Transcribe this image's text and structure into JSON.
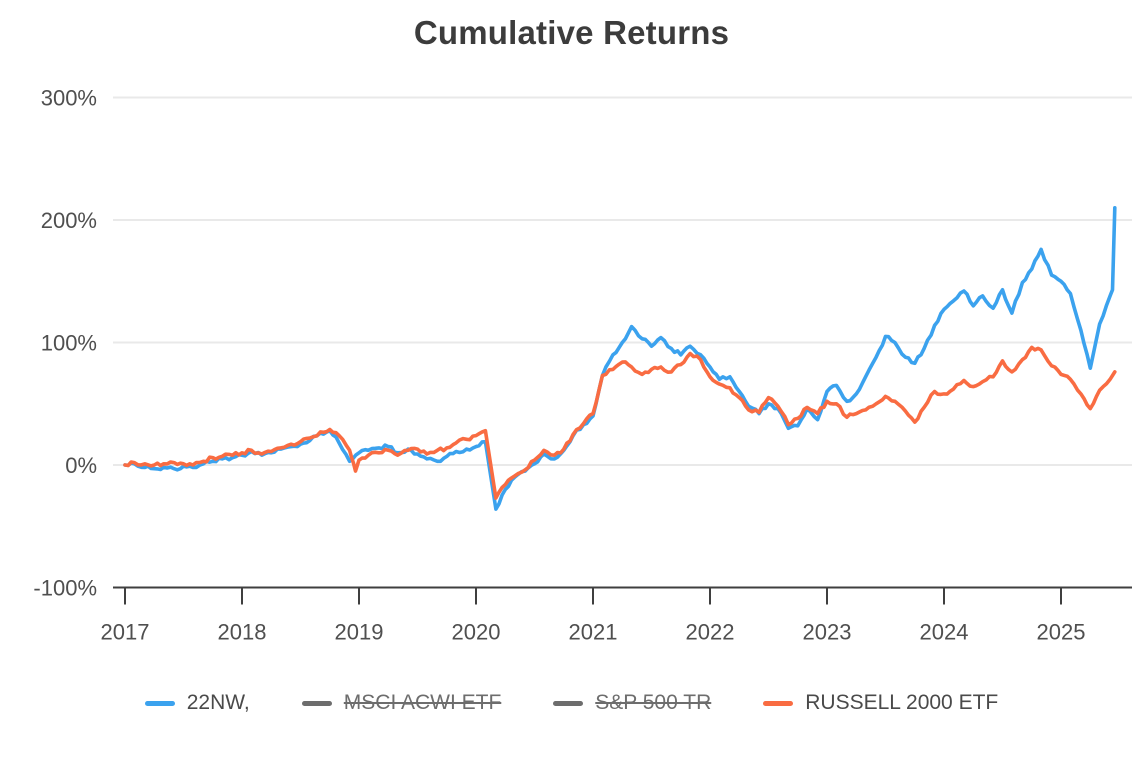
{
  "chart_data": {
    "type": "line",
    "title": "Cumulative Returns",
    "xlabel": "",
    "ylabel": "",
    "x_ticks": [
      2017,
      2018,
      2019,
      2020,
      2021,
      2022,
      2023,
      2024,
      2025
    ],
    "x_tick_labels": [
      "2017",
      "2018",
      "2019",
      "2020",
      "2021",
      "2022",
      "2023",
      "2024",
      "2025"
    ],
    "y_tick_values": [
      300,
      200,
      100,
      0,
      -100
    ],
    "y_tick_labels": [
      "300%",
      "200%",
      "100%",
      "0%",
      "-100%"
    ],
    "ylim": [
      -100,
      300
    ],
    "xlim": [
      2016.9,
      2025.6
    ],
    "grid": "horizontal",
    "legend_position": "bottom",
    "colors": {
      "blue": "#3ba2ee",
      "orange": "#f96c42",
      "disabled_gray": "#6d6d6d",
      "gridline": "#e9e9e9",
      "axis": "#3f3f3f",
      "tick_text": "#4f4f4f",
      "title_text": "#3c3c3c"
    },
    "series": [
      {
        "name": "22NW,",
        "color": "#3ba2ee",
        "hidden": false,
        "points": [
          [
            2017.0,
            0
          ],
          [
            2017.08,
            1
          ],
          [
            2017.17,
            -2
          ],
          [
            2017.25,
            -3
          ],
          [
            2017.33,
            -2
          ],
          [
            2017.42,
            -3
          ],
          [
            2017.5,
            -1
          ],
          [
            2017.58,
            -2
          ],
          [
            2017.67,
            1
          ],
          [
            2017.75,
            3
          ],
          [
            2017.83,
            5
          ],
          [
            2017.92,
            6
          ],
          [
            2018.0,
            8
          ],
          [
            2018.08,
            11
          ],
          [
            2018.17,
            8
          ],
          [
            2018.25,
            10
          ],
          [
            2018.33,
            13
          ],
          [
            2018.42,
            15
          ],
          [
            2018.5,
            17
          ],
          [
            2018.58,
            20
          ],
          [
            2018.67,
            26
          ],
          [
            2018.75,
            28
          ],
          [
            2018.83,
            18
          ],
          [
            2018.92,
            3
          ],
          [
            2019.0,
            10
          ],
          [
            2019.08,
            12
          ],
          [
            2019.17,
            14
          ],
          [
            2019.25,
            15
          ],
          [
            2019.33,
            10
          ],
          [
            2019.42,
            13
          ],
          [
            2019.5,
            9
          ],
          [
            2019.58,
            5
          ],
          [
            2019.67,
            3
          ],
          [
            2019.75,
            7
          ],
          [
            2019.83,
            11
          ],
          [
            2019.92,
            13
          ],
          [
            2020.0,
            15
          ],
          [
            2020.08,
            19
          ],
          [
            2020.17,
            -36
          ],
          [
            2020.25,
            -20
          ],
          [
            2020.33,
            -10
          ],
          [
            2020.42,
            -5
          ],
          [
            2020.5,
            1
          ],
          [
            2020.58,
            9
          ],
          [
            2020.67,
            5
          ],
          [
            2020.75,
            12
          ],
          [
            2020.83,
            24
          ],
          [
            2020.92,
            33
          ],
          [
            2021.0,
            40
          ],
          [
            2021.08,
            73
          ],
          [
            2021.17,
            90
          ],
          [
            2021.25,
            100
          ],
          [
            2021.33,
            113
          ],
          [
            2021.42,
            103
          ],
          [
            2021.5,
            97
          ],
          [
            2021.58,
            104
          ],
          [
            2021.67,
            95
          ],
          [
            2021.75,
            90
          ],
          [
            2021.83,
            97
          ],
          [
            2021.92,
            90
          ],
          [
            2022.0,
            80
          ],
          [
            2022.08,
            70
          ],
          [
            2022.17,
            72
          ],
          [
            2022.25,
            60
          ],
          [
            2022.33,
            48
          ],
          [
            2022.42,
            42
          ],
          [
            2022.5,
            50
          ],
          [
            2022.58,
            46
          ],
          [
            2022.67,
            30
          ],
          [
            2022.75,
            32
          ],
          [
            2022.83,
            46
          ],
          [
            2022.92,
            37
          ],
          [
            2023.0,
            60
          ],
          [
            2023.08,
            65
          ],
          [
            2023.17,
            52
          ],
          [
            2023.25,
            58
          ],
          [
            2023.33,
            72
          ],
          [
            2023.42,
            88
          ],
          [
            2023.5,
            105
          ],
          [
            2023.58,
            100
          ],
          [
            2023.67,
            88
          ],
          [
            2023.75,
            83
          ],
          [
            2023.83,
            95
          ],
          [
            2023.92,
            114
          ],
          [
            2024.0,
            127
          ],
          [
            2024.08,
            134
          ],
          [
            2024.17,
            142
          ],
          [
            2024.25,
            130
          ],
          [
            2024.33,
            138
          ],
          [
            2024.42,
            128
          ],
          [
            2024.5,
            143
          ],
          [
            2024.58,
            124
          ],
          [
            2024.67,
            149
          ],
          [
            2024.75,
            160
          ],
          [
            2024.83,
            176
          ],
          [
            2024.92,
            155
          ],
          [
            2025.0,
            150
          ],
          [
            2025.08,
            140
          ],
          [
            2025.17,
            110
          ],
          [
            2025.25,
            79
          ],
          [
            2025.33,
            115
          ],
          [
            2025.42,
            138
          ],
          [
            2025.44,
            143
          ],
          [
            2025.46,
            210
          ]
        ]
      },
      {
        "name": "MSCI ACWI ETF",
        "color": "#6d6d6d",
        "hidden": true,
        "points": []
      },
      {
        "name": "S&P 500 TR",
        "color": "#6d6d6d",
        "hidden": true,
        "points": []
      },
      {
        "name": "RUSSELL 2000 ETF",
        "color": "#f96c42",
        "hidden": false,
        "points": [
          [
            2017.0,
            0
          ],
          [
            2017.08,
            2
          ],
          [
            2017.17,
            1
          ],
          [
            2017.25,
            0
          ],
          [
            2017.33,
            1
          ],
          [
            2017.42,
            2
          ],
          [
            2017.5,
            1
          ],
          [
            2017.58,
            0
          ],
          [
            2017.67,
            3
          ],
          [
            2017.75,
            6
          ],
          [
            2017.83,
            7
          ],
          [
            2017.92,
            8
          ],
          [
            2018.0,
            10
          ],
          [
            2018.08,
            12
          ],
          [
            2018.17,
            9
          ],
          [
            2018.25,
            11
          ],
          [
            2018.33,
            14
          ],
          [
            2018.42,
            17
          ],
          [
            2018.5,
            19
          ],
          [
            2018.58,
            22
          ],
          [
            2018.67,
            27
          ],
          [
            2018.75,
            29
          ],
          [
            2018.83,
            24
          ],
          [
            2018.92,
            12
          ],
          [
            2018.97,
            -5
          ],
          [
            2019.0,
            4
          ],
          [
            2019.08,
            8
          ],
          [
            2019.17,
            10
          ],
          [
            2019.25,
            12
          ],
          [
            2019.33,
            8
          ],
          [
            2019.42,
            12
          ],
          [
            2019.5,
            13
          ],
          [
            2019.58,
            9
          ],
          [
            2019.67,
            12
          ],
          [
            2019.75,
            14
          ],
          [
            2019.83,
            18
          ],
          [
            2019.92,
            21
          ],
          [
            2020.0,
            24
          ],
          [
            2020.08,
            28
          ],
          [
            2020.17,
            -27
          ],
          [
            2020.25,
            -16
          ],
          [
            2020.33,
            -9
          ],
          [
            2020.42,
            -4
          ],
          [
            2020.5,
            4
          ],
          [
            2020.58,
            12
          ],
          [
            2020.67,
            8
          ],
          [
            2020.75,
            13
          ],
          [
            2020.83,
            25
          ],
          [
            2020.92,
            34
          ],
          [
            2021.0,
            42
          ],
          [
            2021.08,
            73
          ],
          [
            2021.17,
            78
          ],
          [
            2021.25,
            84
          ],
          [
            2021.33,
            80
          ],
          [
            2021.42,
            74
          ],
          [
            2021.5,
            78
          ],
          [
            2021.58,
            80
          ],
          [
            2021.67,
            76
          ],
          [
            2021.75,
            82
          ],
          [
            2021.83,
            91
          ],
          [
            2021.92,
            86
          ],
          [
            2022.0,
            72
          ],
          [
            2022.08,
            66
          ],
          [
            2022.17,
            63
          ],
          [
            2022.25,
            55
          ],
          [
            2022.33,
            45
          ],
          [
            2022.42,
            43
          ],
          [
            2022.5,
            55
          ],
          [
            2022.58,
            48
          ],
          [
            2022.67,
            33
          ],
          [
            2022.75,
            38
          ],
          [
            2022.83,
            47
          ],
          [
            2022.92,
            42
          ],
          [
            2023.0,
            52
          ],
          [
            2023.08,
            50
          ],
          [
            2023.17,
            39
          ],
          [
            2023.25,
            42
          ],
          [
            2023.33,
            45
          ],
          [
            2023.42,
            50
          ],
          [
            2023.5,
            56
          ],
          [
            2023.58,
            52
          ],
          [
            2023.67,
            44
          ],
          [
            2023.75,
            35
          ],
          [
            2023.83,
            47
          ],
          [
            2023.92,
            60
          ],
          [
            2024.0,
            58
          ],
          [
            2024.08,
            62
          ],
          [
            2024.17,
            69
          ],
          [
            2024.25,
            64
          ],
          [
            2024.33,
            68
          ],
          [
            2024.42,
            72
          ],
          [
            2024.5,
            85
          ],
          [
            2024.58,
            76
          ],
          [
            2024.67,
            86
          ],
          [
            2024.75,
            96
          ],
          [
            2024.83,
            94
          ],
          [
            2024.92,
            81
          ],
          [
            2025.0,
            74
          ],
          [
            2025.08,
            70
          ],
          [
            2025.17,
            58
          ],
          [
            2025.25,
            46
          ],
          [
            2025.33,
            61
          ],
          [
            2025.42,
            70
          ],
          [
            2025.46,
            76
          ]
        ]
      }
    ]
  }
}
